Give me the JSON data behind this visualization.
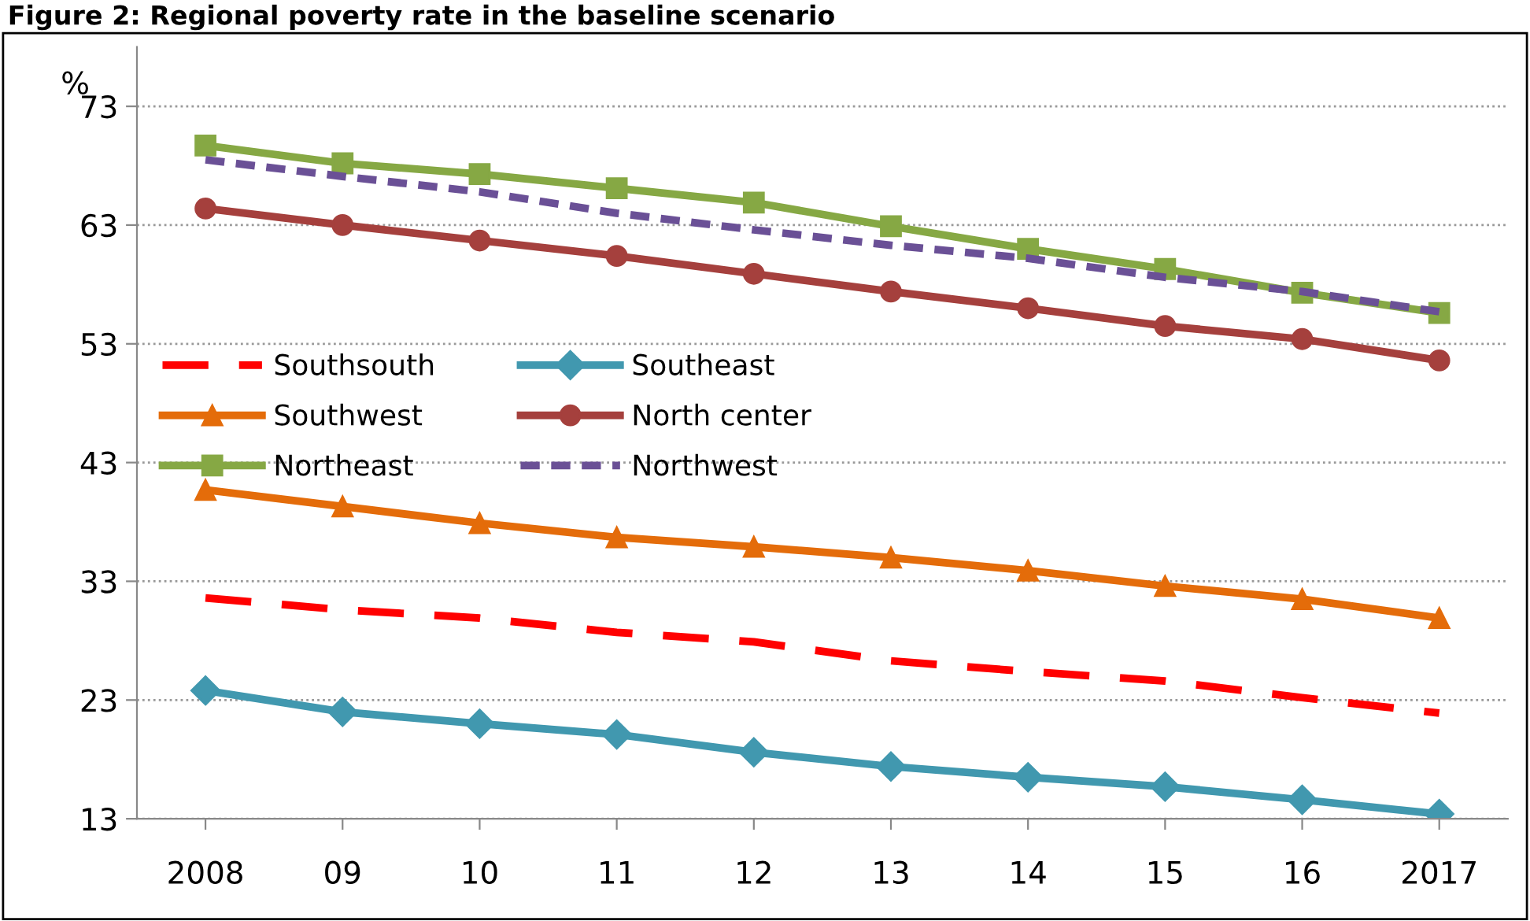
{
  "chart_data": {
    "type": "line",
    "title": "Figure 2: Regional poverty rate in the baseline scenario",
    "ylabel": "%",
    "categories": [
      "2008",
      "09",
      "10",
      "11",
      "12",
      "13",
      "14",
      "15",
      "16",
      "2017"
    ],
    "series": [
      {
        "name": "Southsouth",
        "color": "#ff0000",
        "marker": "none",
        "line_style": "dashed",
        "values": [
          31.6,
          30.6,
          29.9,
          28.7,
          27.9,
          26.3,
          25.4,
          24.6,
          23.2,
          21.9
        ]
      },
      {
        "name": "Southeast",
        "color": "#4198af",
        "marker": "diamond",
        "line_style": "solid",
        "values": [
          23.8,
          22.0,
          21.0,
          20.1,
          18.6,
          17.4,
          16.5,
          15.7,
          14.6,
          13.4
        ]
      },
      {
        "name": "Southwest",
        "color": "#e46c0a",
        "marker": "triangle",
        "line_style": "solid",
        "values": [
          40.7,
          39.3,
          37.9,
          36.7,
          35.9,
          35.0,
          33.9,
          32.6,
          31.5,
          29.9
        ]
      },
      {
        "name": "North center",
        "color": "#a5403d",
        "marker": "circle",
        "line_style": "solid",
        "values": [
          64.4,
          63.0,
          61.7,
          60.4,
          58.9,
          57.4,
          56.0,
          54.5,
          53.4,
          51.6
        ]
      },
      {
        "name": "Northeast",
        "color": "#86a844",
        "marker": "square",
        "line_style": "solid",
        "values": [
          69.7,
          68.2,
          67.3,
          66.1,
          64.9,
          62.9,
          61.0,
          59.3,
          57.3,
          55.6
        ]
      },
      {
        "name": "Northwest",
        "color": "#6a5096",
        "marker": "none",
        "line_style": "dotted",
        "values": [
          68.5,
          67.1,
          65.8,
          64.0,
          62.6,
          61.3,
          60.2,
          58.6,
          57.4,
          55.7
        ]
      }
    ],
    "ylim": [
      13,
      78
    ],
    "yticks": [
      13,
      23,
      33,
      43,
      53,
      63,
      73
    ],
    "grid": "y",
    "legend": "center left"
  }
}
